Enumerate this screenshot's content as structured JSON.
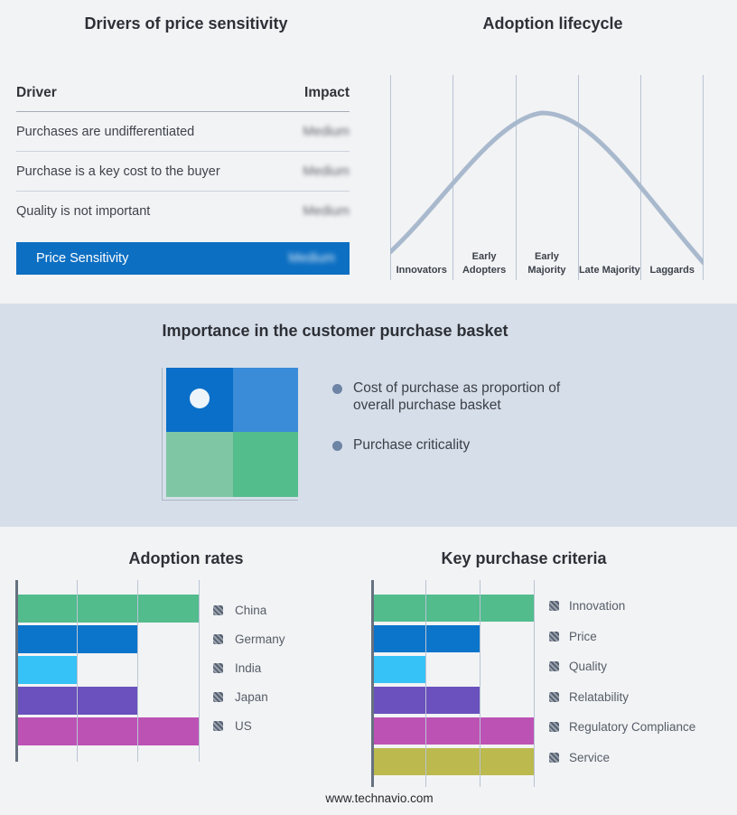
{
  "footer": {
    "text": "www.technavio.com"
  },
  "colors": {
    "page_background": "#f2f3f5",
    "band_background": "#d6dee9",
    "highlight_row_blue": "#0d6fc2",
    "curve": "#a9b9cd",
    "gridline": "#b9c4d4",
    "axis_line": "#667180",
    "title_text": "#2d3036",
    "body_text": "#3e424a",
    "legend_text": "#565d67",
    "bullet_dot": "#6e84a5"
  },
  "chart_data": [
    {
      "id": "drivers_table",
      "type": "table",
      "title": "Drivers of price sensitivity",
      "columns": [
        "Driver",
        "Impact"
      ],
      "rows": [
        [
          "Purchases are undifferentiated",
          "Medium"
        ],
        [
          "Purchase is a key cost to the buyer",
          "Medium"
        ],
        [
          "Quality is not important",
          "Medium"
        ]
      ],
      "highlight_row": [
        "Price Sensitivity",
        "Medium"
      ],
      "note": "impact values are shown blurred in the source image"
    },
    {
      "id": "adoption_lifecycle",
      "type": "line",
      "title": "Adoption lifecycle",
      "curve": "bell",
      "categories": [
        "Innovators",
        "Early Adopters",
        "Early Majority",
        "Late Majority",
        "Laggards"
      ],
      "peak_category": "Early Majority",
      "vertical_gridlines": 6,
      "grid": true,
      "legend_position": "none"
    },
    {
      "id": "purchase_basket",
      "type": "quadrant",
      "title": "Importance in the customer purchase basket",
      "bullets": [
        "Cost of purchase as proportion of overall purchase basket",
        "Purchase criticality"
      ],
      "quadrant_colors": [
        "#0a6fc8",
        "#3a8cd8",
        "#7ec6a4",
        "#54bd8c"
      ],
      "marker": "white dot in top-left quadrant"
    },
    {
      "id": "adoption_rates",
      "type": "bar",
      "orientation": "horizontal",
      "title": "Adoption rates",
      "categories": [
        "China",
        "Germany",
        "India",
        "Japan",
        "US"
      ],
      "values": [
        3,
        2,
        1,
        2,
        3
      ],
      "xlim": [
        0,
        3
      ],
      "grid": true,
      "legend_position": "right",
      "bar_colors": [
        "#52bc8d",
        "#0b74cb",
        "#36c2f6",
        "#6a51bd",
        "#bd52b5"
      ]
    },
    {
      "id": "key_purchase_criteria",
      "type": "bar",
      "orientation": "horizontal",
      "title": "Key purchase criteria",
      "categories": [
        "Innovation",
        "Price",
        "Quality",
        "Relatability",
        "Regulatory Compliance",
        "Service"
      ],
      "values": [
        3,
        2,
        1,
        2,
        3,
        3
      ],
      "xlim": [
        0,
        3
      ],
      "grid": true,
      "legend_position": "right",
      "bar_colors": [
        "#52bc8d",
        "#0b74cb",
        "#36c2f6",
        "#6a51bd",
        "#bd52b5",
        "#bcb94e"
      ]
    }
  ]
}
